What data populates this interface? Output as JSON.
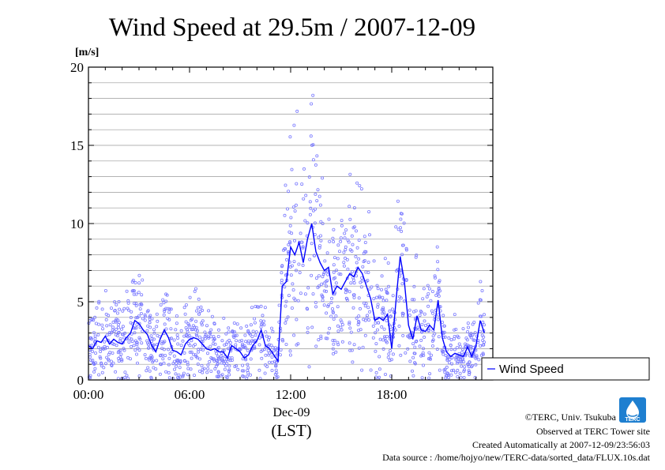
{
  "chart_data": {
    "type": "line",
    "title": "Wind Speed at 29.5m / 2007-12-09",
    "ylabel": "[m/s]",
    "xlabel": "(LST)",
    "date_label": "Dec-09",
    "ylim": [
      0,
      20
    ],
    "xlim": [
      0,
      24
    ],
    "y_ticks": [
      0,
      5,
      10,
      15,
      20
    ],
    "y_tick_labels": [
      "0",
      "5",
      "10",
      "15",
      "20"
    ],
    "x_ticks": [
      0,
      6,
      12,
      18
    ],
    "x_tick_labels": [
      "00:00",
      "06:00",
      "12:00",
      "18:00"
    ],
    "grid": true,
    "legend_position": "right",
    "series": [
      {
        "name": "Wind Speed",
        "color": "#0000ff",
        "scatter_color": "#7b7bff",
        "x": [
          0.0,
          0.25,
          0.5,
          0.75,
          1.0,
          1.25,
          1.5,
          1.75,
          2.0,
          2.25,
          2.5,
          2.75,
          3.0,
          3.25,
          3.5,
          3.75,
          4.0,
          4.25,
          4.5,
          4.75,
          5.0,
          5.25,
          5.5,
          5.75,
          6.0,
          6.25,
          6.5,
          6.75,
          7.0,
          7.25,
          7.5,
          7.75,
          8.0,
          8.25,
          8.5,
          8.75,
          9.0,
          9.25,
          9.5,
          9.75,
          10.0,
          10.25,
          10.5,
          10.75,
          11.0,
          11.25,
          11.5,
          11.75,
          12.0,
          12.25,
          12.5,
          12.75,
          13.0,
          13.25,
          13.5,
          13.75,
          14.0,
          14.25,
          14.5,
          14.75,
          15.0,
          15.25,
          15.5,
          15.75,
          16.0,
          16.25,
          16.5,
          16.75,
          17.0,
          17.25,
          17.5,
          17.75,
          18.0,
          18.25,
          18.5,
          18.75,
          19.0,
          19.25,
          19.5,
          19.75,
          20.0,
          20.25,
          20.5,
          20.75,
          21.0,
          21.25,
          21.5,
          21.75,
          22.0,
          22.25,
          22.5,
          22.75,
          23.0,
          23.25,
          23.5
        ],
        "values": [
          2.2,
          2.0,
          2.5,
          2.4,
          2.8,
          2.3,
          2.6,
          2.4,
          2.3,
          2.7,
          3.0,
          3.8,
          3.6,
          3.2,
          2.9,
          2.2,
          1.8,
          2.6,
          3.2,
          2.7,
          1.9,
          1.8,
          1.6,
          2.3,
          2.6,
          2.7,
          2.6,
          2.3,
          2.0,
          1.9,
          2.0,
          1.8,
          1.8,
          1.4,
          2.2,
          2.0,
          1.8,
          1.4,
          1.6,
          2.2,
          2.5,
          3.2,
          2.2,
          2.0,
          1.6,
          1.2,
          6.0,
          6.3,
          8.5,
          8.0,
          8.8,
          7.5,
          9.0,
          10.0,
          8.2,
          7.5,
          7.0,
          7.2,
          5.5,
          6.0,
          5.8,
          6.3,
          6.8,
          6.6,
          7.2,
          6.8,
          6.0,
          5.2,
          3.8,
          4.0,
          3.8,
          4.2,
          2.0,
          5.0,
          7.9,
          6.3,
          3.5,
          2.6,
          4.1,
          3.2,
          3.1,
          3.5,
          3.2,
          5.1,
          2.7,
          1.8,
          1.5,
          1.7,
          1.6,
          1.5,
          2.1,
          1.5,
          2.2,
          3.8,
          3.0
        ]
      }
    ]
  },
  "credits": {
    "copyright": "©TERC, Univ. Tsukuba",
    "observed": "Observed at TERC Tower site",
    "created": "Created Automatically at 2007-12-09/23:56:03",
    "source": "Data source : /home/hojyo/new/TERC-data/sorted_data/FLUX.10s.dat",
    "logo_text": "TERC"
  }
}
